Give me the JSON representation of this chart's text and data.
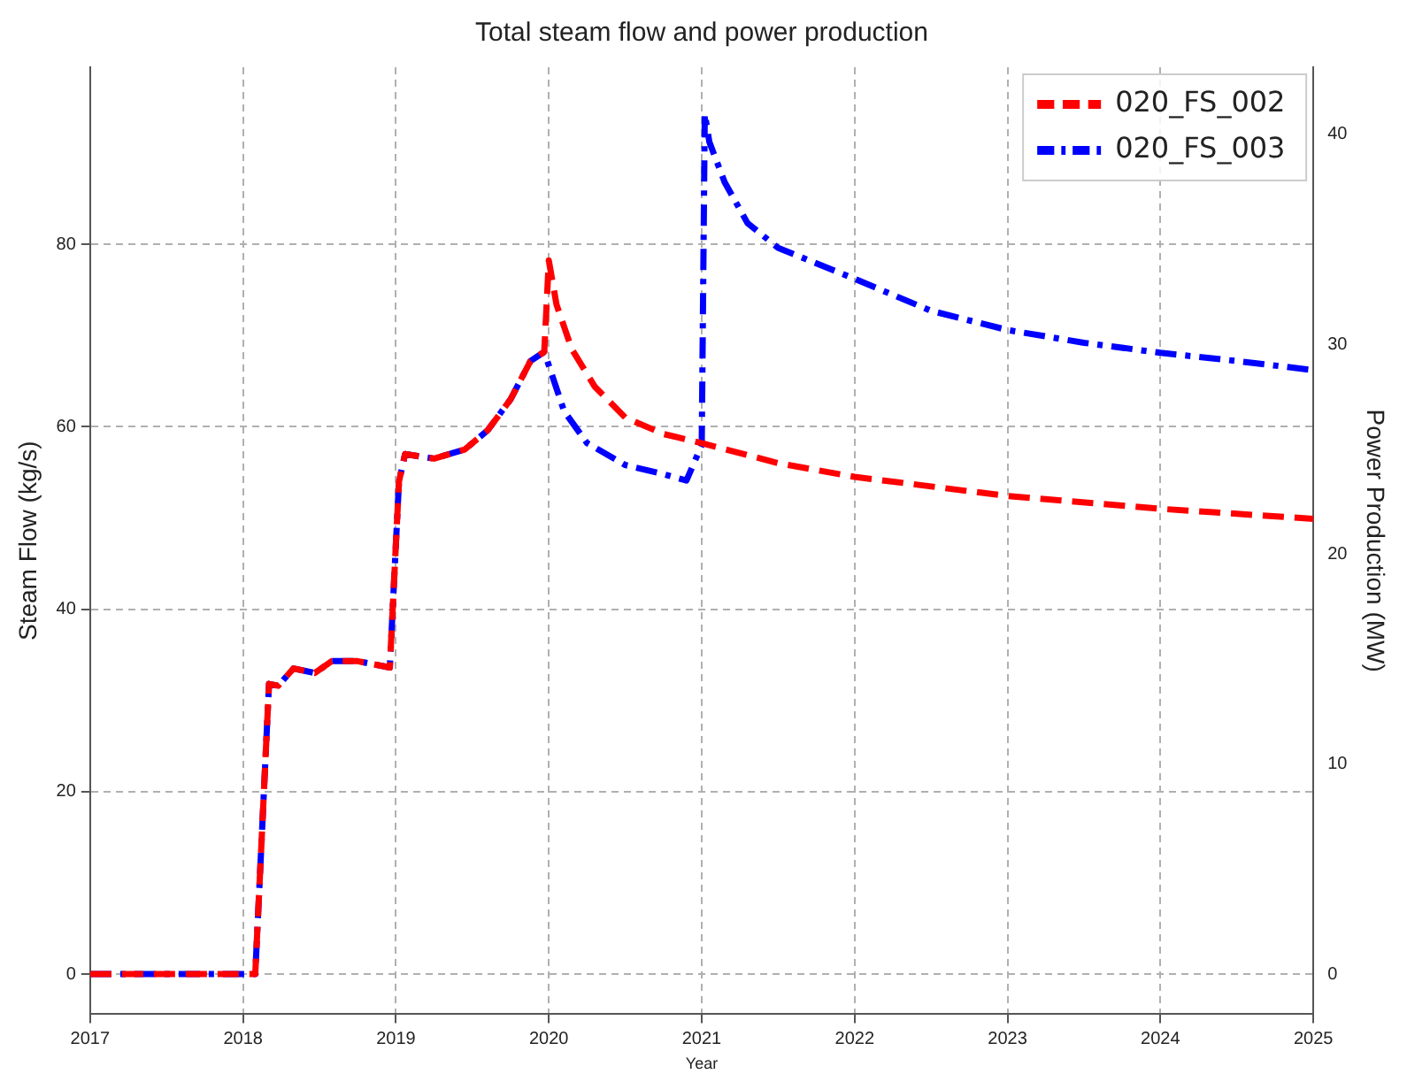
{
  "chart_data": {
    "type": "line",
    "title": "Total steam flow and power production",
    "xlabel": "Year",
    "ylabel": "Steam Flow (kg/s)",
    "y2label": "Power Production (MW)",
    "xlim": [
      2017,
      2025
    ],
    "xticks": [
      2017,
      2018,
      2019,
      2020,
      2021,
      2022,
      2023,
      2024,
      2025
    ],
    "ylim": [
      -4.4,
      99.4
    ],
    "yticks": [
      0,
      20,
      40,
      60,
      80
    ],
    "y2lim": [
      -1.9,
      43.2
    ],
    "y2ticks": [
      0,
      10,
      20,
      30,
      40
    ],
    "grid": true,
    "legend": "top right",
    "series": [
      {
        "name": "020_FS_002",
        "color": "#ff0000",
        "line_style": "dashed",
        "x": [
          2017,
          2018.08,
          2018.17,
          2018.23,
          2018.33,
          2018.47,
          2018.58,
          2018.75,
          2018.96,
          2019.02,
          2019.06,
          2019.25,
          2019.45,
          2019.6,
          2019.75,
          2019.88,
          2019.97,
          2020.0,
          2020.05,
          2020.15,
          2020.3,
          2020.5,
          2020.75,
          2021.0,
          2021.5,
          2022,
          2023,
          2024,
          2025
        ],
        "values": [
          0,
          0,
          31.8,
          31.6,
          33.5,
          33,
          34.3,
          34.3,
          33.6,
          54,
          57,
          56.5,
          57.5,
          59.6,
          63,
          67.2,
          68.2,
          78.2,
          73.4,
          68.5,
          64.4,
          61,
          59.2,
          58.2,
          56,
          54.5,
          52.4,
          51,
          49.9
        ]
      },
      {
        "name": "020_FS_003",
        "color": "#0000ff",
        "line_style": "dashdot",
        "x": [
          2017,
          2018.08,
          2018.17,
          2018.23,
          2018.33,
          2018.47,
          2018.58,
          2018.75,
          2018.96,
          2019.02,
          2019.06,
          2019.25,
          2019.45,
          2019.6,
          2019.75,
          2019.88,
          2019.97,
          2020.1,
          2020.25,
          2020.5,
          2020.75,
          2020.9,
          2021.0,
          2021.02,
          2021.05,
          2021.15,
          2021.3,
          2021.5,
          2022,
          2022.5,
          2023,
          2023.5,
          2024,
          2024.5,
          2025
        ],
        "values": [
          0,
          0,
          31.8,
          31.6,
          33.5,
          33,
          34.3,
          34.3,
          33.6,
          54,
          57,
          56.5,
          57.5,
          59.6,
          63,
          67.2,
          68.2,
          61.7,
          58.2,
          55.8,
          54.8,
          54.1,
          58,
          94.3,
          91.2,
          86.8,
          82.3,
          79.6,
          76.2,
          72.7,
          70.6,
          69.2,
          68.1,
          67.2,
          66.2
        ]
      }
    ]
  }
}
